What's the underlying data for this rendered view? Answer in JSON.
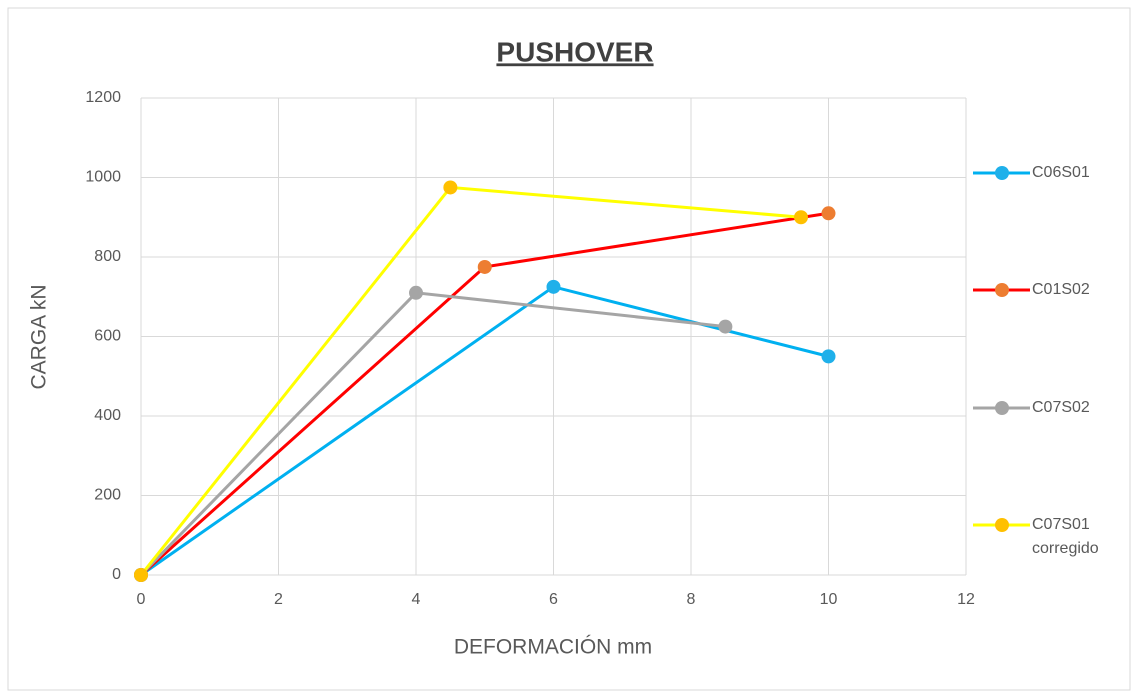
{
  "chart_data": {
    "type": "line",
    "title": "PUSHOVER",
    "x_label": "DEFORMACIÓN mm",
    "y_label": "CARGA kN",
    "xlim": [
      0,
      12
    ],
    "xticks": [
      0,
      2,
      4,
      6,
      8,
      10,
      12
    ],
    "ylim": [
      0,
      1200
    ],
    "yticks": [
      0,
      200,
      400,
      600,
      800,
      1000,
      1200
    ],
    "grid": true,
    "legend": "right",
    "series": [
      {
        "name": "C06S01",
        "color": "#00b0f0",
        "marker_color": "#1fb0ea",
        "x": [
          0,
          6,
          10
        ],
        "values": [
          0,
          725,
          550
        ]
      },
      {
        "name": "C01S02",
        "color": "#ff0000",
        "marker_color": "#ed7d31",
        "x": [
          0,
          5,
          10
        ],
        "values": [
          0,
          775,
          910
        ]
      },
      {
        "name": "C07S02",
        "color": "#a5a5a5",
        "marker_color": "#a5a5a5",
        "x": [
          0,
          4,
          8.5
        ],
        "values": [
          0,
          710,
          625
        ]
      },
      {
        "name": "C07S01 corregido",
        "color": "#ffff00",
        "marker_color": "#ffc000",
        "x": [
          0,
          4.5,
          9.6
        ],
        "values": [
          0,
          975,
          900
        ]
      }
    ]
  }
}
